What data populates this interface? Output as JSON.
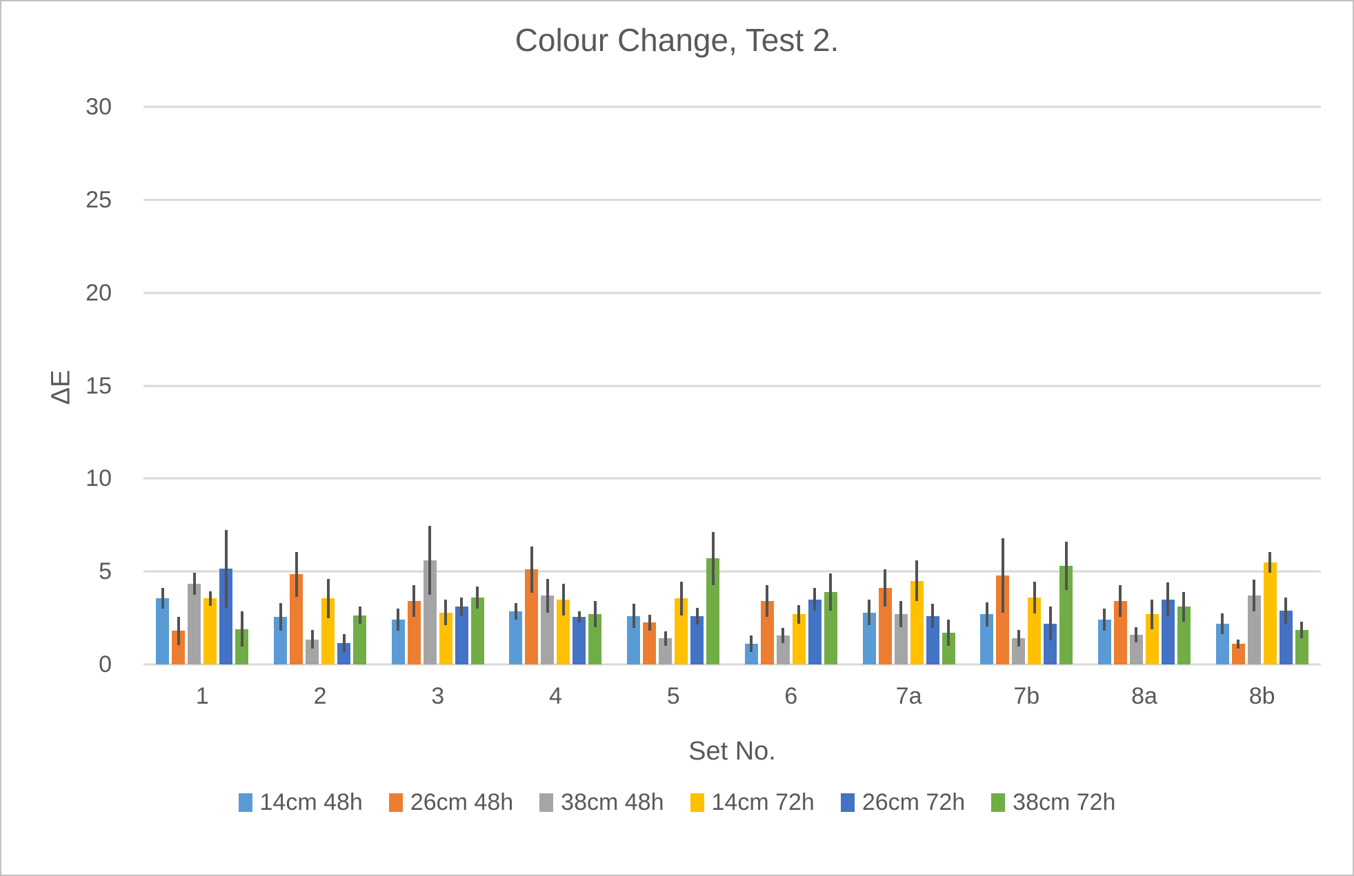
{
  "chart_data": {
    "type": "bar",
    "title": "Colour Change, Test 2.",
    "xlabel": "Set No.",
    "ylabel": "ΔE",
    "categories": [
      "1",
      "2",
      "3",
      "4",
      "5",
      "6",
      "7a",
      "7b",
      "8a",
      "8b"
    ],
    "series": [
      {
        "name": "14cm 48h",
        "color": "#5B9BD5",
        "values": [
          3.55,
          2.55,
          2.4,
          2.85,
          2.6,
          1.1,
          2.8,
          2.7,
          2.4,
          2.2
        ],
        "errors": [
          0.55,
          0.75,
          0.6,
          0.45,
          0.65,
          0.45,
          0.7,
          0.65,
          0.6,
          0.55
        ]
      },
      {
        "name": "26cm 48h",
        "color": "#ED7D31",
        "values": [
          1.8,
          4.85,
          3.4,
          5.1,
          2.25,
          3.4,
          4.1,
          4.8,
          3.4,
          1.1
        ],
        "errors": [
          0.77,
          1.2,
          0.85,
          1.25,
          0.42,
          0.85,
          1.0,
          2.0,
          0.85,
          0.25
        ]
      },
      {
        "name": "38cm 48h",
        "color": "#A5A5A5",
        "values": [
          4.35,
          1.35,
          5.6,
          3.7,
          1.4,
          1.55,
          2.7,
          1.4,
          1.6,
          3.7
        ],
        "errors": [
          0.6,
          0.5,
          1.85,
          0.9,
          0.38,
          0.4,
          0.7,
          0.45,
          0.4,
          0.85
        ]
      },
      {
        "name": "14cm 72h",
        "color": "#FFC000",
        "values": [
          3.55,
          3.55,
          2.8,
          3.5,
          3.55,
          2.7,
          4.5,
          3.6,
          2.7,
          5.5
        ],
        "errors": [
          0.4,
          1.05,
          0.7,
          0.85,
          0.9,
          0.5,
          1.1,
          0.85,
          0.8,
          0.55
        ]
      },
      {
        "name": "26cm 72h",
        "color": "#4472C4",
        "values": [
          5.15,
          1.15,
          3.1,
          2.55,
          2.6,
          3.5,
          2.6,
          2.2,
          3.5,
          2.9
        ],
        "errors": [
          2.1,
          0.5,
          0.5,
          0.3,
          0.45,
          0.6,
          0.65,
          0.9,
          0.9,
          0.7
        ]
      },
      {
        "name": "38cm 72h",
        "color": "#70AD47",
        "values": [
          1.9,
          2.65,
          3.6,
          2.7,
          5.7,
          3.9,
          1.7,
          5.3,
          3.1,
          1.85
        ],
        "errors": [
          0.95,
          0.45,
          0.6,
          0.7,
          1.42,
          1.0,
          0.7,
          1.3,
          0.8,
          0.45
        ]
      }
    ],
    "ylim": [
      0,
      30
    ],
    "yticks": [
      0,
      5,
      10,
      15,
      20,
      25,
      30
    ],
    "grid": true,
    "legend_position": "bottom",
    "error_bars": true
  },
  "colors": {
    "gridline": "#D9D9D9",
    "text": "#595959",
    "error_bar": "#525252",
    "frame_border": "#C2C2C2",
    "background": "#FFFFFF"
  }
}
